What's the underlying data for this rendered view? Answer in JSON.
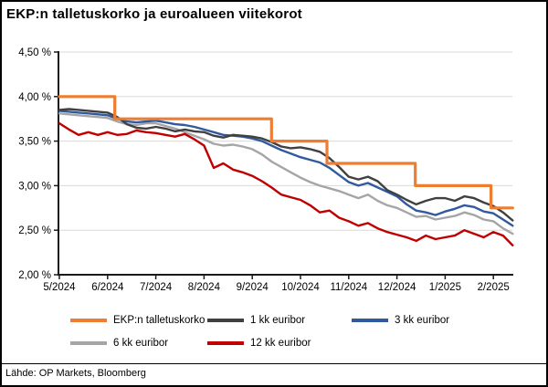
{
  "header": {
    "title": "EKP:n talletuskorko ja euroalueen viitekorot"
  },
  "footer": {
    "text": "Lähde: OP Markets, Bloomberg"
  },
  "chart_data": {
    "type": "line",
    "title": "EKP:n talletuskorko ja euroalueen viitekorot",
    "xlabel": "",
    "ylabel": "",
    "grid": "horizontal",
    "legend_position": "bottom",
    "colors": {
      "gridline": "#D9D9D9",
      "axis": "#1a1a1a",
      "text": "#000000"
    },
    "y_axis": {
      "min": 2.0,
      "max": 4.5,
      "step": 0.5,
      "tick_labels": [
        "4,50 %",
        "4,00 %",
        "3,50 %",
        "3,00 %",
        "2,50 %",
        "2,00 %"
      ]
    },
    "x_axis": {
      "min": 0,
      "max": 9.4,
      "unit": "month-index (0 = 5/2024)",
      "tick_values": [
        0,
        1,
        2,
        3,
        4,
        5,
        6,
        7,
        8,
        9
      ],
      "tick_labels": [
        "5/2024",
        "6/2024",
        "7/2024",
        "8/2024",
        "9/2024",
        "10/2024",
        "11/2024",
        "12/2024",
        "1/2025",
        "2/2025"
      ]
    },
    "series": [
      {
        "name": "EKP:n talletuskorko",
        "color": "#ED7D31",
        "width": 3.2,
        "step": true,
        "points": [
          [
            0,
            4.0
          ],
          [
            1.15,
            4.0
          ],
          [
            1.15,
            3.75
          ],
          [
            4.4,
            3.75
          ],
          [
            4.4,
            3.5
          ],
          [
            5.55,
            3.5
          ],
          [
            5.55,
            3.25
          ],
          [
            7.38,
            3.25
          ],
          [
            7.38,
            3.0
          ],
          [
            8.95,
            3.0
          ],
          [
            8.95,
            2.75
          ],
          [
            9.4,
            2.75
          ]
        ]
      },
      {
        "name": "1 kk euribor",
        "color": "#404040",
        "width": 2.4,
        "points": [
          [
            0,
            3.85
          ],
          [
            0.2,
            3.86
          ],
          [
            0.4,
            3.85
          ],
          [
            0.6,
            3.84
          ],
          [
            0.8,
            3.83
          ],
          [
            1.0,
            3.82
          ],
          [
            1.2,
            3.77
          ],
          [
            1.4,
            3.69
          ],
          [
            1.6,
            3.65
          ],
          [
            1.8,
            3.64
          ],
          [
            2.0,
            3.66
          ],
          [
            2.2,
            3.64
          ],
          [
            2.4,
            3.61
          ],
          [
            2.6,
            3.63
          ],
          [
            2.8,
            3.61
          ],
          [
            3.0,
            3.6
          ],
          [
            3.2,
            3.56
          ],
          [
            3.4,
            3.54
          ],
          [
            3.6,
            3.57
          ],
          [
            3.8,
            3.56
          ],
          [
            4.0,
            3.55
          ],
          [
            4.2,
            3.53
          ],
          [
            4.4,
            3.49
          ],
          [
            4.6,
            3.44
          ],
          [
            4.8,
            3.42
          ],
          [
            5.0,
            3.43
          ],
          [
            5.2,
            3.41
          ],
          [
            5.4,
            3.38
          ],
          [
            5.6,
            3.31
          ],
          [
            5.8,
            3.21
          ],
          [
            6.0,
            3.1
          ],
          [
            6.2,
            3.07
          ],
          [
            6.4,
            3.1
          ],
          [
            6.6,
            3.05
          ],
          [
            6.8,
            2.95
          ],
          [
            7.0,
            2.9
          ],
          [
            7.2,
            2.84
          ],
          [
            7.4,
            2.79
          ],
          [
            7.6,
            2.83
          ],
          [
            7.8,
            2.86
          ],
          [
            8.0,
            2.86
          ],
          [
            8.2,
            2.83
          ],
          [
            8.4,
            2.88
          ],
          [
            8.6,
            2.86
          ],
          [
            8.8,
            2.81
          ],
          [
            9.0,
            2.77
          ],
          [
            9.2,
            2.7
          ],
          [
            9.4,
            2.61
          ]
        ]
      },
      {
        "name": "3 kk euribor",
        "color": "#315A9E",
        "width": 2.4,
        "points": [
          [
            0,
            3.84
          ],
          [
            0.2,
            3.83
          ],
          [
            0.4,
            3.82
          ],
          [
            0.6,
            3.81
          ],
          [
            0.8,
            3.8
          ],
          [
            1.0,
            3.79
          ],
          [
            1.2,
            3.75
          ],
          [
            1.4,
            3.72
          ],
          [
            1.6,
            3.71
          ],
          [
            1.8,
            3.72
          ],
          [
            2.0,
            3.73
          ],
          [
            2.2,
            3.71
          ],
          [
            2.4,
            3.69
          ],
          [
            2.6,
            3.68
          ],
          [
            2.8,
            3.66
          ],
          [
            3.0,
            3.63
          ],
          [
            3.2,
            3.6
          ],
          [
            3.4,
            3.57
          ],
          [
            3.6,
            3.56
          ],
          [
            3.8,
            3.55
          ],
          [
            4.0,
            3.53
          ],
          [
            4.2,
            3.5
          ],
          [
            4.4,
            3.45
          ],
          [
            4.6,
            3.4
          ],
          [
            4.8,
            3.36
          ],
          [
            5.0,
            3.32
          ],
          [
            5.2,
            3.29
          ],
          [
            5.4,
            3.26
          ],
          [
            5.6,
            3.2
          ],
          [
            5.8,
            3.12
          ],
          [
            6.0,
            3.04
          ],
          [
            6.2,
            3.0
          ],
          [
            6.4,
            3.03
          ],
          [
            6.6,
            2.98
          ],
          [
            6.8,
            2.93
          ],
          [
            7.0,
            2.88
          ],
          [
            7.2,
            2.79
          ],
          [
            7.4,
            2.72
          ],
          [
            7.6,
            2.7
          ],
          [
            7.8,
            2.67
          ],
          [
            8.0,
            2.71
          ],
          [
            8.2,
            2.74
          ],
          [
            8.4,
            2.78
          ],
          [
            8.6,
            2.76
          ],
          [
            8.8,
            2.71
          ],
          [
            9.0,
            2.69
          ],
          [
            9.2,
            2.62
          ],
          [
            9.4,
            2.55
          ]
        ]
      },
      {
        "name": "6 kk euribor",
        "color": "#A5A5A5",
        "width": 2.4,
        "points": [
          [
            0,
            3.81
          ],
          [
            0.2,
            3.8
          ],
          [
            0.4,
            3.79
          ],
          [
            0.6,
            3.78
          ],
          [
            0.8,
            3.77
          ],
          [
            1.0,
            3.76
          ],
          [
            1.2,
            3.72
          ],
          [
            1.4,
            3.69
          ],
          [
            1.6,
            3.68
          ],
          [
            1.8,
            3.7
          ],
          [
            2.0,
            3.7
          ],
          [
            2.2,
            3.67
          ],
          [
            2.4,
            3.64
          ],
          [
            2.6,
            3.6
          ],
          [
            2.8,
            3.56
          ],
          [
            3.0,
            3.52
          ],
          [
            3.2,
            3.47
          ],
          [
            3.4,
            3.45
          ],
          [
            3.6,
            3.46
          ],
          [
            3.8,
            3.44
          ],
          [
            4.0,
            3.41
          ],
          [
            4.2,
            3.35
          ],
          [
            4.4,
            3.27
          ],
          [
            4.6,
            3.21
          ],
          [
            4.8,
            3.15
          ],
          [
            5.0,
            3.09
          ],
          [
            5.2,
            3.04
          ],
          [
            5.4,
            3.0
          ],
          [
            5.6,
            2.97
          ],
          [
            5.8,
            2.94
          ],
          [
            6.0,
            2.9
          ],
          [
            6.2,
            2.86
          ],
          [
            6.4,
            2.9
          ],
          [
            6.6,
            2.83
          ],
          [
            6.8,
            2.78
          ],
          [
            7.0,
            2.75
          ],
          [
            7.2,
            2.7
          ],
          [
            7.4,
            2.65
          ],
          [
            7.6,
            2.66
          ],
          [
            7.8,
            2.62
          ],
          [
            8.0,
            2.64
          ],
          [
            8.2,
            2.66
          ],
          [
            8.4,
            2.7
          ],
          [
            8.6,
            2.67
          ],
          [
            8.8,
            2.62
          ],
          [
            9.0,
            2.6
          ],
          [
            9.2,
            2.52
          ],
          [
            9.4,
            2.46
          ]
        ]
      },
      {
        "name": "12 kk euribor",
        "color": "#C00000",
        "width": 2.4,
        "points": [
          [
            0,
            3.7
          ],
          [
            0.2,
            3.63
          ],
          [
            0.4,
            3.57
          ],
          [
            0.6,
            3.6
          ],
          [
            0.8,
            3.57
          ],
          [
            1.0,
            3.6
          ],
          [
            1.2,
            3.57
          ],
          [
            1.4,
            3.58
          ],
          [
            1.6,
            3.62
          ],
          [
            1.8,
            3.6
          ],
          [
            2.0,
            3.59
          ],
          [
            2.2,
            3.57
          ],
          [
            2.4,
            3.55
          ],
          [
            2.6,
            3.58
          ],
          [
            2.8,
            3.52
          ],
          [
            3.0,
            3.45
          ],
          [
            3.2,
            3.2
          ],
          [
            3.4,
            3.25
          ],
          [
            3.6,
            3.18
          ],
          [
            3.8,
            3.15
          ],
          [
            4.0,
            3.11
          ],
          [
            4.2,
            3.05
          ],
          [
            4.4,
            2.98
          ],
          [
            4.6,
            2.9
          ],
          [
            4.8,
            2.87
          ],
          [
            5.0,
            2.84
          ],
          [
            5.2,
            2.78
          ],
          [
            5.4,
            2.7
          ],
          [
            5.6,
            2.72
          ],
          [
            5.8,
            2.64
          ],
          [
            6.0,
            2.6
          ],
          [
            6.2,
            2.55
          ],
          [
            6.4,
            2.58
          ],
          [
            6.6,
            2.52
          ],
          [
            6.8,
            2.48
          ],
          [
            7.0,
            2.45
          ],
          [
            7.2,
            2.42
          ],
          [
            7.4,
            2.38
          ],
          [
            7.6,
            2.44
          ],
          [
            7.8,
            2.4
          ],
          [
            8.0,
            2.42
          ],
          [
            8.2,
            2.44
          ],
          [
            8.4,
            2.5
          ],
          [
            8.6,
            2.46
          ],
          [
            8.8,
            2.42
          ],
          [
            9.0,
            2.48
          ],
          [
            9.2,
            2.44
          ],
          [
            9.4,
            2.33
          ]
        ]
      }
    ]
  }
}
